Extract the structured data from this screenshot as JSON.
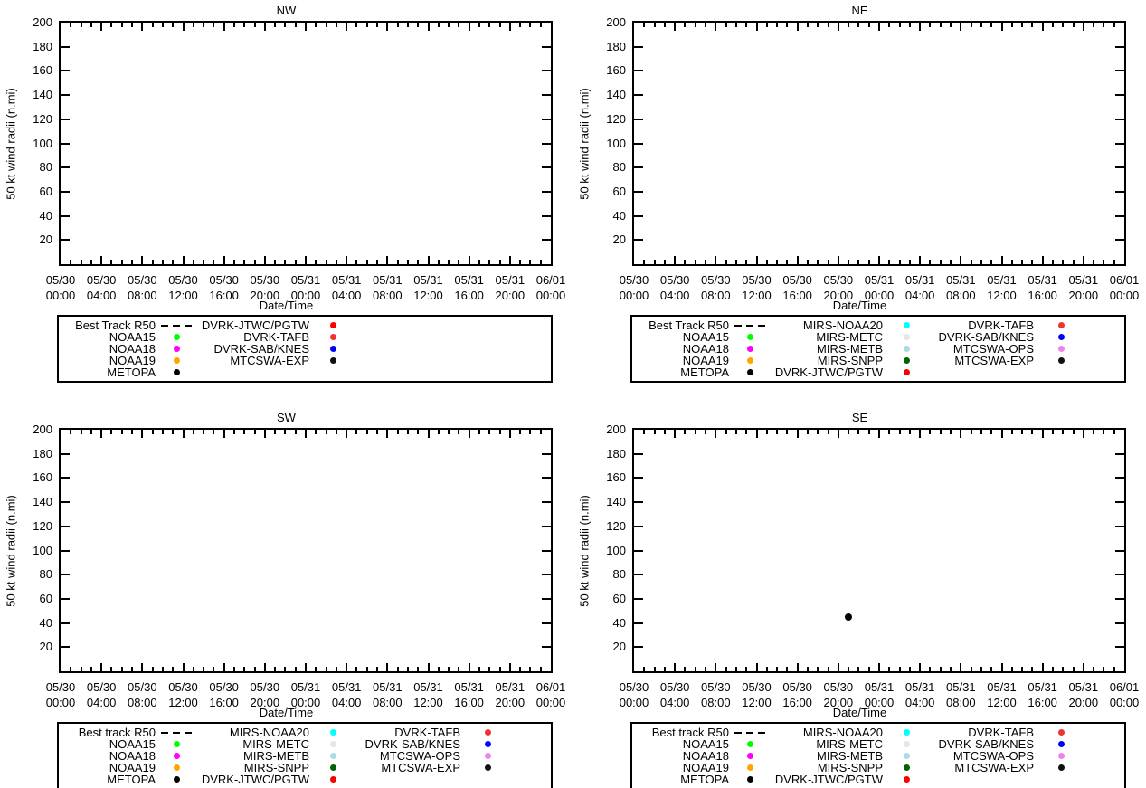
{
  "axes": {
    "ylabel": "50 kt wind radii (n.mi)",
    "xlabel": "Date/Time",
    "y_ticks": [
      "20",
      "40",
      "60",
      "80",
      "100",
      "120",
      "140",
      "160",
      "180",
      "200"
    ],
    "y_range": [
      0,
      200
    ],
    "x_range_hours": 48,
    "x_major_every_hours": 4,
    "x_minor_every_hours": 1,
    "x_tick_labels": [
      [
        "05/30",
        "00:00"
      ],
      [
        "05/30",
        "04:00"
      ],
      [
        "05/30",
        "08:00"
      ],
      [
        "05/30",
        "12:00"
      ],
      [
        "05/30",
        "16:00"
      ],
      [
        "05/30",
        "20:00"
      ],
      [
        "05/31",
        "00:00"
      ],
      [
        "05/31",
        "04:00"
      ],
      [
        "05/31",
        "08:00"
      ],
      [
        "05/31",
        "12:00"
      ],
      [
        "05/31",
        "16:00"
      ],
      [
        "05/31",
        "20:00"
      ],
      [
        "06/01",
        "00:00"
      ]
    ]
  },
  "panels": [
    {
      "id": "nw",
      "title": "NW",
      "legend": {
        "columns": [
          [
            {
              "label": "Best Track R50",
              "marker": "dashes",
              "color": "#000000"
            },
            {
              "label": "NOAA15",
              "marker": "dot",
              "color": "#00ff00"
            },
            {
              "label": "NOAA18",
              "marker": "dot",
              "color": "#ff00ff"
            },
            {
              "label": "NOAA19",
              "marker": "dot",
              "color": "#ffa500"
            },
            {
              "label": "METOPA",
              "marker": "dot",
              "color": "#000000"
            }
          ],
          [
            {
              "label": "DVRK-JTWC/PGTW",
              "marker": "dot",
              "color": "#ff0000"
            },
            {
              "label": "DVRK-TAFB",
              "marker": "dot",
              "color": "#ee3333"
            },
            {
              "label": "DVRK-SAB/KNES",
              "marker": "dot",
              "color": "#0000ff"
            },
            {
              "label": "MTCSWA-EXP",
              "marker": "dot",
              "color": "#111111"
            }
          ]
        ]
      },
      "points": []
    },
    {
      "id": "ne",
      "title": "NE",
      "legend": {
        "columns": [
          [
            {
              "label": "Best Track R50",
              "marker": "dashes",
              "color": "#000000"
            },
            {
              "label": "NOAA15",
              "marker": "dot",
              "color": "#00ff00"
            },
            {
              "label": "NOAA18",
              "marker": "dot",
              "color": "#ff00ff"
            },
            {
              "label": "NOAA19",
              "marker": "dot",
              "color": "#ffa500"
            },
            {
              "label": "METOPA",
              "marker": "dot",
              "color": "#000000"
            }
          ],
          [
            {
              "label": "MIRS-NOAA20",
              "marker": "dot",
              "color": "#00ffff"
            },
            {
              "label": "MIRS-METC",
              "marker": "dot",
              "color": "#e6e6e6"
            },
            {
              "label": "MIRS-METB",
              "marker": "dot",
              "color": "#add8e6"
            },
            {
              "label": "MIRS-SNPP",
              "marker": "dot",
              "color": "#006400"
            },
            {
              "label": "DVRK-JTWC/PGTW",
              "marker": "dot",
              "color": "#ff0000"
            }
          ],
          [
            {
              "label": "DVRK-TAFB",
              "marker": "dot",
              "color": "#ee3333"
            },
            {
              "label": "DVRK-SAB/KNES",
              "marker": "dot",
              "color": "#0000ff"
            },
            {
              "label": "MTCSWA-OPS",
              "marker": "dot",
              "color": "#ee82ee"
            },
            {
              "label": "MTCSWA-EXP",
              "marker": "dot",
              "color": "#111111"
            }
          ]
        ]
      },
      "points": []
    },
    {
      "id": "sw",
      "title": "SW",
      "legend": {
        "columns": [
          [
            {
              "label": "Best track R50",
              "marker": "dashes",
              "color": "#000000"
            },
            {
              "label": "NOAA15",
              "marker": "dot",
              "color": "#00ff00"
            },
            {
              "label": "NOAA18",
              "marker": "dot",
              "color": "#ff00ff"
            },
            {
              "label": "NOAA19",
              "marker": "dot",
              "color": "#ffa500"
            },
            {
              "label": "METOPA",
              "marker": "dot",
              "color": "#000000"
            }
          ],
          [
            {
              "label": "MIRS-NOAA20",
              "marker": "dot",
              "color": "#00ffff"
            },
            {
              "label": "MIRS-METC",
              "marker": "dot",
              "color": "#e6e6e6"
            },
            {
              "label": "MIRS-METB",
              "marker": "dot",
              "color": "#add8e6"
            },
            {
              "label": "MIRS-SNPP",
              "marker": "dot",
              "color": "#006400"
            },
            {
              "label": "DVRK-JTWC/PGTW",
              "marker": "dot",
              "color": "#ff0000"
            }
          ],
          [
            {
              "label": "DVRK-TAFB",
              "marker": "dot",
              "color": "#ee3333"
            },
            {
              "label": "DVRK-SAB/KNES",
              "marker": "dot",
              "color": "#0000ff"
            },
            {
              "label": "MTCSWA-OPS",
              "marker": "dot",
              "color": "#ee82ee"
            },
            {
              "label": "MTCSWA-EXP",
              "marker": "dot",
              "color": "#111111"
            }
          ]
        ]
      },
      "points": []
    },
    {
      "id": "se",
      "title": "SE",
      "legend": {
        "columns": [
          [
            {
              "label": "Best track R50",
              "marker": "dashes",
              "color": "#000000"
            },
            {
              "label": "NOAA15",
              "marker": "dot",
              "color": "#00ff00"
            },
            {
              "label": "NOAA18",
              "marker": "dot",
              "color": "#ff00ff"
            },
            {
              "label": "NOAA19",
              "marker": "dot",
              "color": "#ffa500"
            },
            {
              "label": "METOPA",
              "marker": "dot",
              "color": "#000000"
            }
          ],
          [
            {
              "label": "MIRS-NOAA20",
              "marker": "dot",
              "color": "#00ffff"
            },
            {
              "label": "MIRS-METC",
              "marker": "dot",
              "color": "#e6e6e6"
            },
            {
              "label": "MIRS-METB",
              "marker": "dot",
              "color": "#add8e6"
            },
            {
              "label": "MIRS-SNPP",
              "marker": "dot",
              "color": "#006400"
            },
            {
              "label": "DVRK-JTWC/PGTW",
              "marker": "dot",
              "color": "#ff0000"
            }
          ],
          [
            {
              "label": "DVRK-TAFB",
              "marker": "dot",
              "color": "#ee3333"
            },
            {
              "label": "DVRK-SAB/KNES",
              "marker": "dot",
              "color": "#0000ff"
            },
            {
              "label": "MTCSWA-OPS",
              "marker": "dot",
              "color": "#ee82ee"
            },
            {
              "label": "MTCSWA-EXP",
              "marker": "dot",
              "color": "#111111"
            }
          ]
        ]
      },
      "points": [
        {
          "time": "05/30 21:00",
          "hours": 21,
          "value": 45,
          "color": "#000000"
        }
      ]
    }
  ],
  "chart_data": [
    {
      "type": "scatter",
      "title": "NW",
      "xlabel": "Date/Time",
      "ylabel": "50 kt wind radii (n.mi)",
      "xlim": [
        "05/30 00:00",
        "06/01 00:00"
      ],
      "ylim": [
        0,
        200
      ],
      "x_ticks": [
        "05/30 00:00",
        "05/30 04:00",
        "05/30 08:00",
        "05/30 12:00",
        "05/30 16:00",
        "05/30 20:00",
        "05/31 00:00",
        "05/31 04:00",
        "05/31 08:00",
        "05/31 12:00",
        "05/31 16:00",
        "05/31 20:00",
        "06/01 00:00"
      ],
      "y_ticks": [
        20,
        40,
        60,
        80,
        100,
        120,
        140,
        160,
        180,
        200
      ],
      "grid": false,
      "legend_position": "below-plot",
      "legend_entries": [
        "Best Track R50",
        "NOAA15",
        "NOAA18",
        "NOAA19",
        "METOPA",
        "DVRK-JTWC/PGTW",
        "DVRK-TAFB",
        "DVRK-SAB/KNES",
        "MTCSWA-EXP"
      ],
      "series": []
    },
    {
      "type": "scatter",
      "title": "NE",
      "xlabel": "Date/Time",
      "ylabel": "50 kt wind radii (n.mi)",
      "xlim": [
        "05/30 00:00",
        "06/01 00:00"
      ],
      "ylim": [
        0,
        200
      ],
      "x_ticks": [
        "05/30 00:00",
        "05/30 04:00",
        "05/30 08:00",
        "05/30 12:00",
        "05/30 16:00",
        "05/30 20:00",
        "05/31 00:00",
        "05/31 04:00",
        "05/31 08:00",
        "05/31 12:00",
        "05/31 16:00",
        "05/31 20:00",
        "06/01 00:00"
      ],
      "y_ticks": [
        20,
        40,
        60,
        80,
        100,
        120,
        140,
        160,
        180,
        200
      ],
      "grid": false,
      "legend_position": "below-plot",
      "legend_entries": [
        "Best Track R50",
        "NOAA15",
        "NOAA18",
        "NOAA19",
        "METOPA",
        "MIRS-NOAA20",
        "MIRS-METC",
        "MIRS-METB",
        "MIRS-SNPP",
        "DVRK-JTWC/PGTW",
        "DVRK-TAFB",
        "DVRK-SAB/KNES",
        "MTCSWA-OPS",
        "MTCSWA-EXP"
      ],
      "series": []
    },
    {
      "type": "scatter",
      "title": "SW",
      "xlabel": "Date/Time",
      "ylabel": "50 kt wind radii (n.mi)",
      "xlim": [
        "05/30 00:00",
        "06/01 00:00"
      ],
      "ylim": [
        0,
        200
      ],
      "x_ticks": [
        "05/30 00:00",
        "05/30 04:00",
        "05/30 08:00",
        "05/30 12:00",
        "05/30 16:00",
        "05/30 20:00",
        "05/31 00:00",
        "05/31 04:00",
        "05/31 08:00",
        "05/31 12:00",
        "05/31 16:00",
        "05/31 20:00",
        "06/01 00:00"
      ],
      "y_ticks": [
        20,
        40,
        60,
        80,
        100,
        120,
        140,
        160,
        180,
        200
      ],
      "grid": false,
      "legend_position": "below-plot",
      "legend_entries": [
        "Best track R50",
        "NOAA15",
        "NOAA18",
        "NOAA19",
        "METOPA",
        "MIRS-NOAA20",
        "MIRS-METC",
        "MIRS-METB",
        "MIRS-SNPP",
        "DVRK-JTWC/PGTW",
        "DVRK-TAFB",
        "DVRK-SAB/KNES",
        "MTCSWA-OPS",
        "MTCSWA-EXP"
      ],
      "series": []
    },
    {
      "type": "scatter",
      "title": "SE",
      "xlabel": "Date/Time",
      "ylabel": "50 kt wind radii (n.mi)",
      "xlim": [
        "05/30 00:00",
        "06/01 00:00"
      ],
      "ylim": [
        0,
        200
      ],
      "x_ticks": [
        "05/30 00:00",
        "05/30 04:00",
        "05/30 08:00",
        "05/30 12:00",
        "05/30 16:00",
        "05/30 20:00",
        "05/31 00:00",
        "05/31 04:00",
        "05/31 08:00",
        "05/31 12:00",
        "05/31 16:00",
        "05/31 20:00",
        "06/01 00:00"
      ],
      "y_ticks": [
        20,
        40,
        60,
        80,
        100,
        120,
        140,
        160,
        180,
        200
      ],
      "grid": false,
      "legend_position": "below-plot",
      "legend_entries": [
        "Best track R50",
        "NOAA15",
        "NOAA18",
        "NOAA19",
        "METOPA",
        "MIRS-NOAA20",
        "MIRS-METC",
        "MIRS-METB",
        "MIRS-SNPP",
        "DVRK-JTWC/PGTW",
        "DVRK-TAFB",
        "DVRK-SAB/KNES",
        "MTCSWA-OPS",
        "MTCSWA-EXP"
      ],
      "series": [
        {
          "name": "unlabeled black marker (METOPA or MTCSWA-EXP)",
          "color": "#000000",
          "points": [
            {
              "x": "05/30 21:00",
              "y": 45
            }
          ]
        }
      ]
    }
  ]
}
